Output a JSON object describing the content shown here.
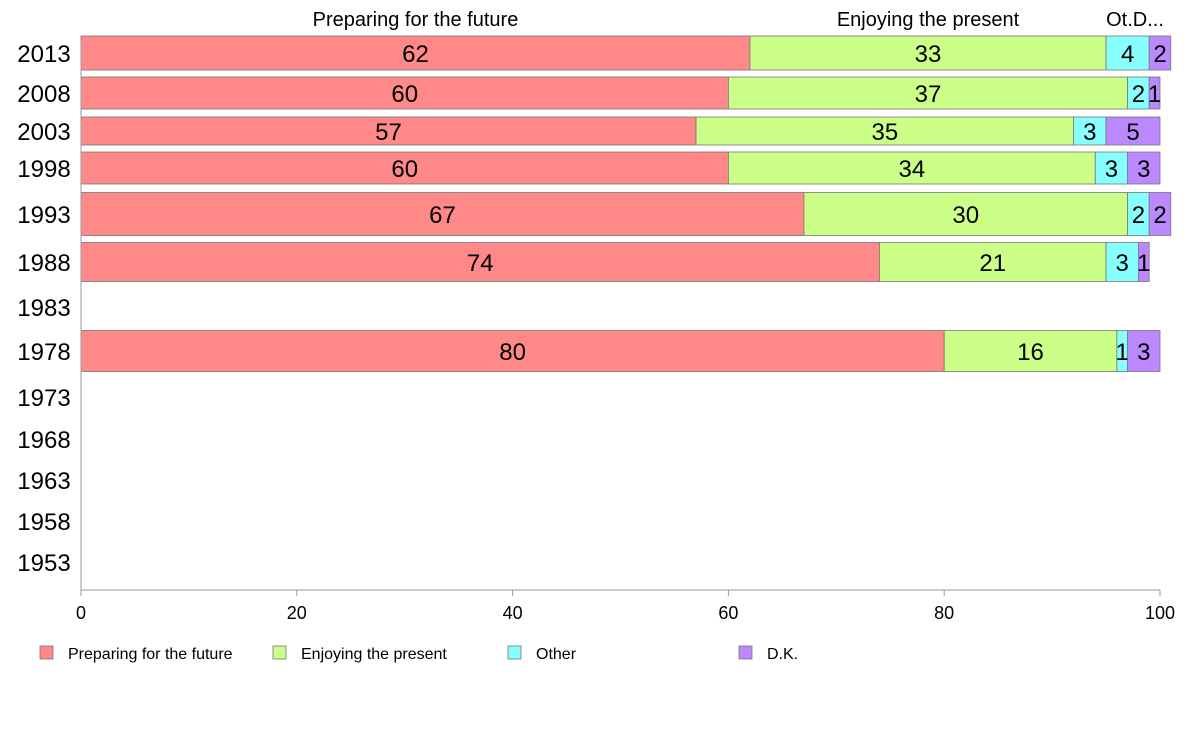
{
  "chart_data": {
    "type": "bar",
    "orientation": "horizontal",
    "stacked": true,
    "categories": [
      "2013",
      "2008",
      "2003",
      "1998",
      "1993",
      "1988",
      "1983",
      "1978",
      "1973",
      "1968",
      "1963",
      "1958",
      "1953"
    ],
    "series": [
      {
        "name": "Preparing for the future",
        "color": "#ff8888",
        "values": [
          62,
          60,
          57,
          60,
          67,
          74,
          null,
          80,
          null,
          null,
          null,
          null,
          null
        ]
      },
      {
        "name": "Enjoying the present",
        "color": "#ccff88",
        "values": [
          33,
          37,
          35,
          34,
          30,
          21,
          null,
          16,
          null,
          null,
          null,
          null,
          null
        ]
      },
      {
        "name": "Other",
        "color": "#88ffff",
        "values": [
          4,
          2,
          3,
          3,
          2,
          3,
          null,
          1,
          null,
          null,
          null,
          null,
          null
        ]
      },
      {
        "name": "D.K.",
        "color": "#bb88ff",
        "values": [
          2,
          1,
          5,
          3,
          2,
          1,
          null,
          3,
          null,
          null,
          null,
          null,
          null
        ]
      }
    ],
    "top_labels": [
      "Preparing for the future",
      "Enjoying the present",
      "Ot.D..."
    ],
    "x_ticks": [
      "0",
      "20",
      "40",
      "60",
      "80",
      "100"
    ],
    "xlim": [
      0,
      100
    ],
    "grid": false,
    "legend_position": "bottom"
  }
}
